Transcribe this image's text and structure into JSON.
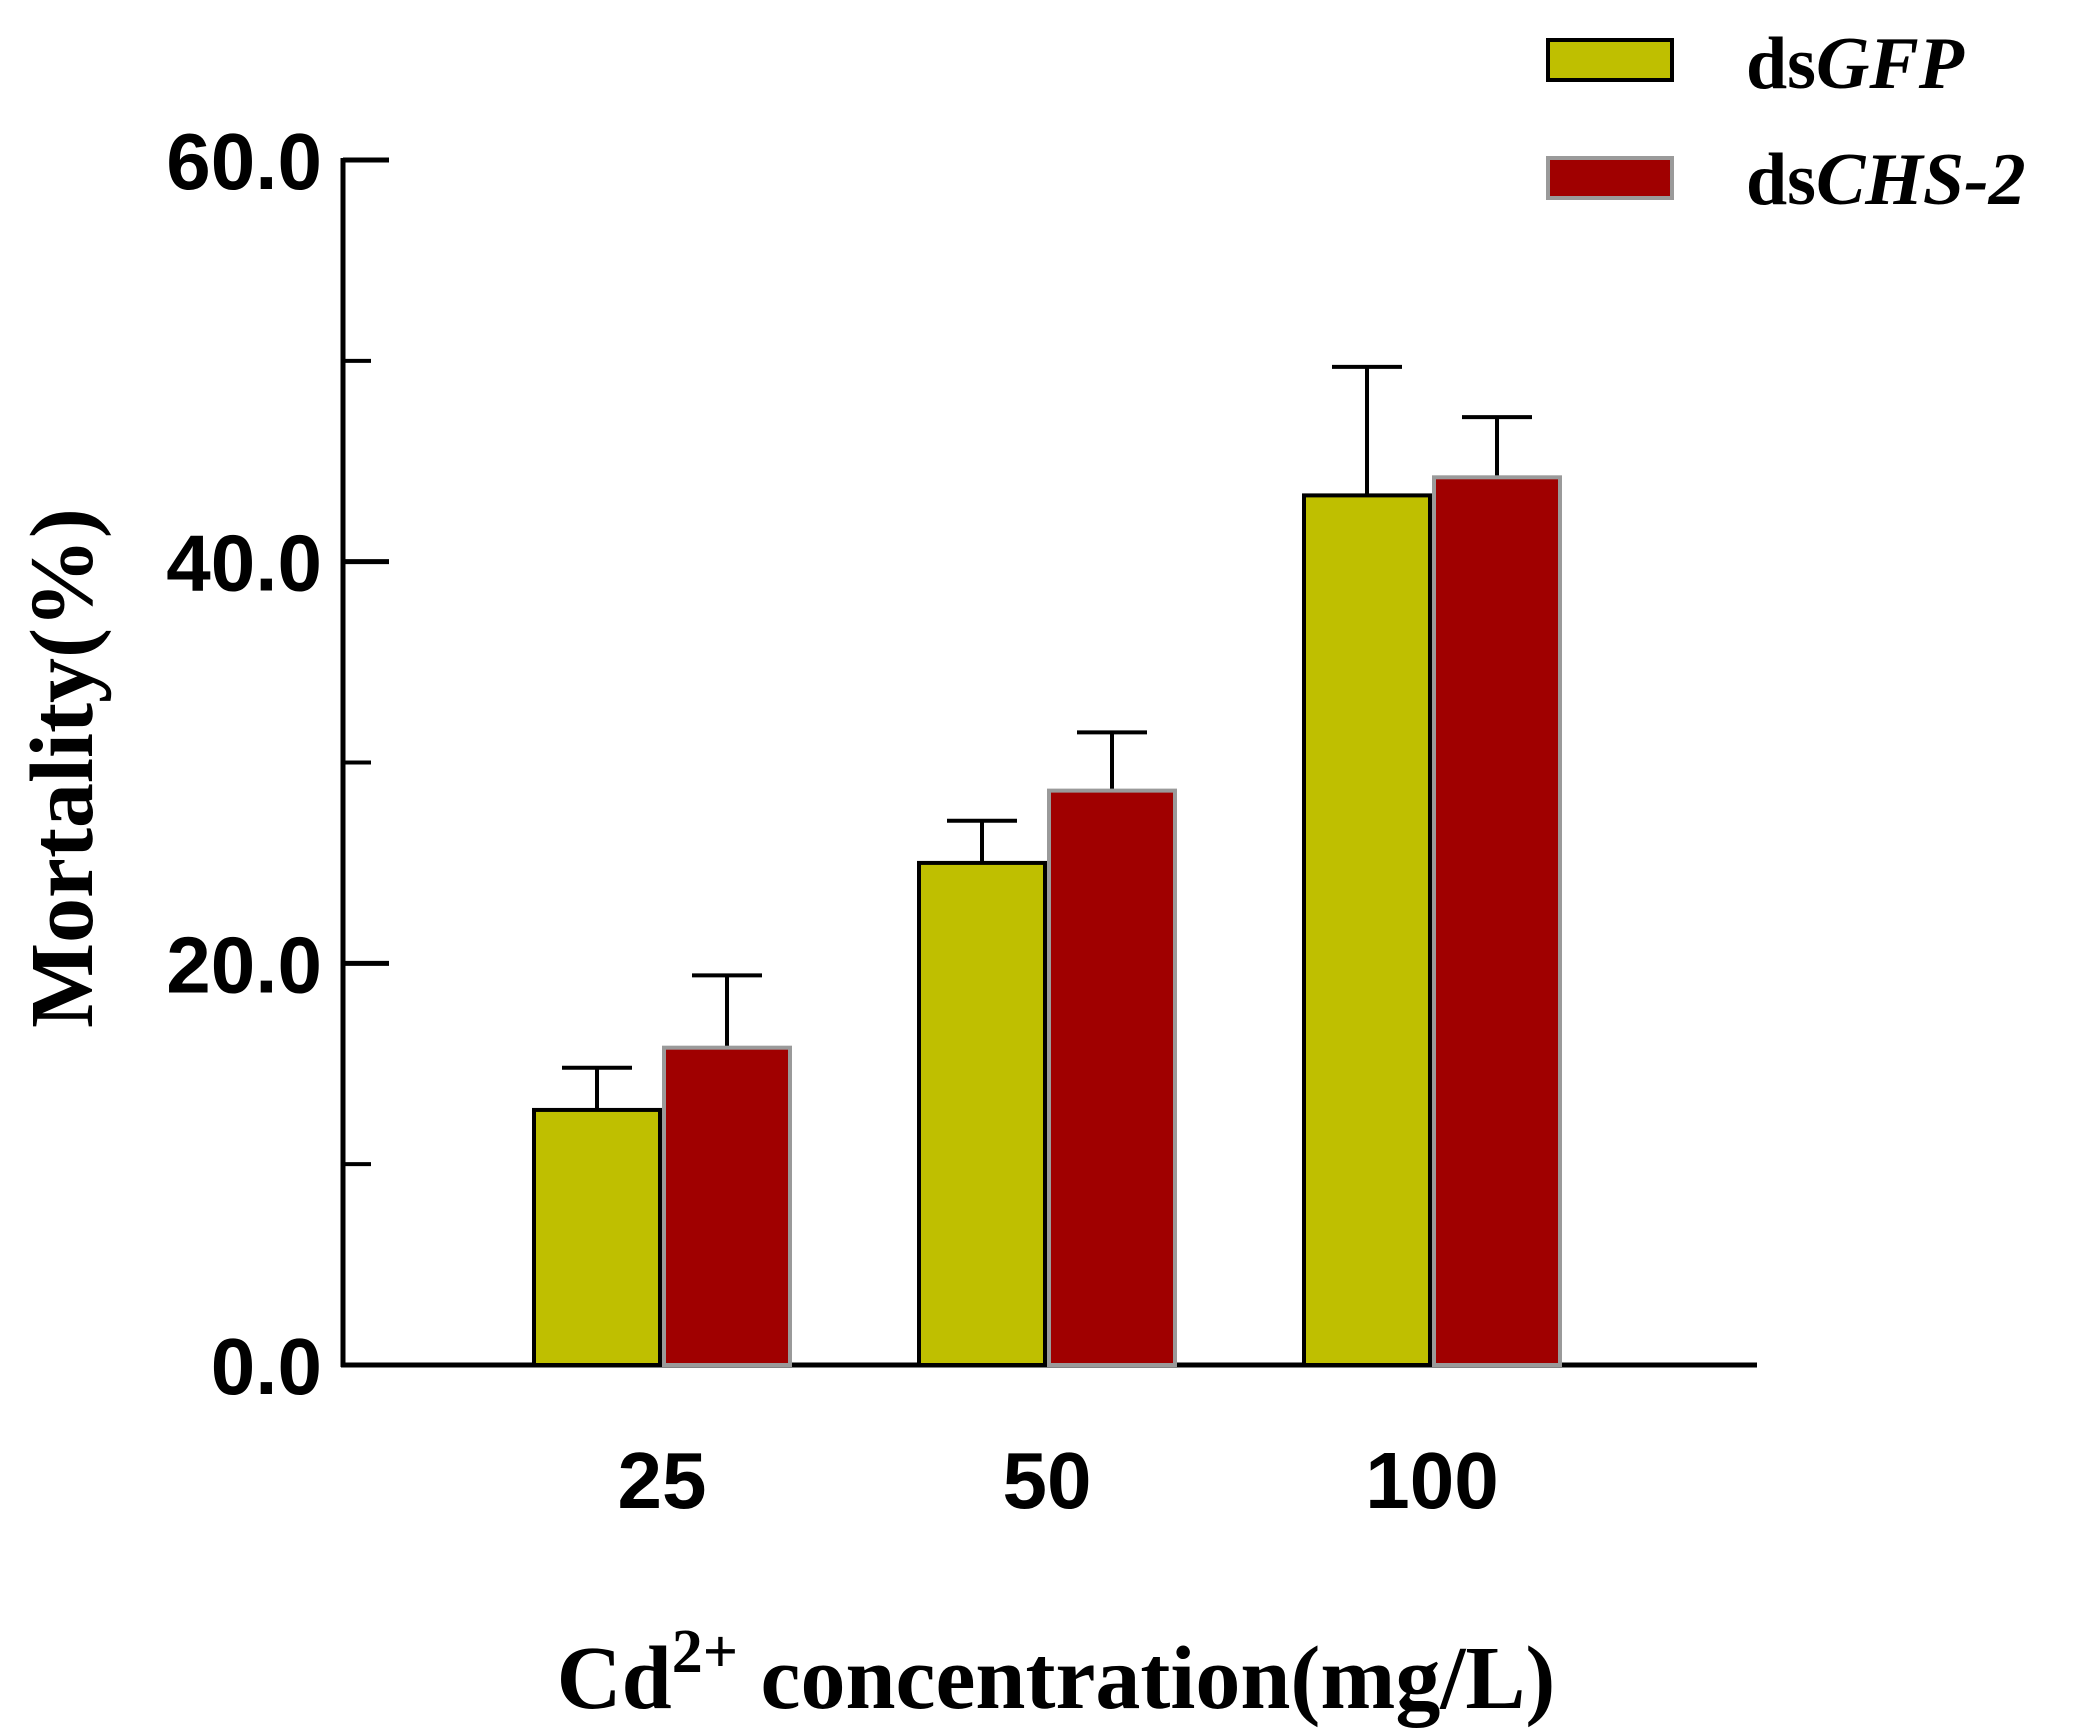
{
  "chart_data": {
    "type": "bar",
    "categories": [
      "25",
      "50",
      "100"
    ],
    "series": [
      {
        "name": "dsGFP",
        "prefix": "ds",
        "gene": "GFP",
        "color": "#bfbf00",
        "border": "#000000",
        "values": [
          12.7,
          25.0,
          43.3
        ],
        "errors": [
          2.1,
          2.1,
          6.4
        ]
      },
      {
        "name": "dsCHS-2",
        "prefix": "ds",
        "gene": "CHS-2",
        "color": "#a00000",
        "border": "#9a9a9a",
        "values": [
          15.8,
          28.6,
          44.2
        ],
        "errors": [
          3.6,
          2.9,
          3.0
        ]
      }
    ],
    "ylabel": "Mortality(%)",
    "xlabel": {
      "prefix": "Cd",
      "superscript": "2+",
      "suffix": " concentration(mg/L)"
    },
    "ylim": [
      0,
      60
    ],
    "yticks": [
      "0.0",
      "20.0",
      "40.0",
      "60.0"
    ],
    "minor_yticks": [
      10,
      30,
      50
    ],
    "legend_position": "top-right",
    "grid": false
  }
}
